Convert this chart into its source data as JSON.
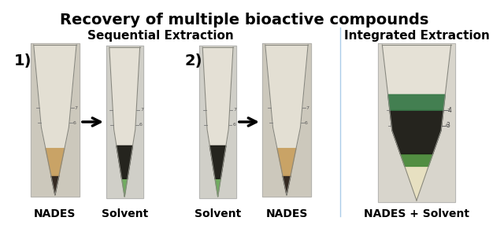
{
  "title": "Recovery of multiple bioactive compounds",
  "subtitle_left": "Sequential Extraction",
  "subtitle_right": "Integrated Extraction",
  "label_1": "1)",
  "label_2": "2)",
  "bg_color": "#ffffff",
  "border_color": "#5b9bd5",
  "title_fontsize": 14,
  "subtitle_fontsize": 11,
  "number_fontsize": 14,
  "tube_label_fontsize": 10,
  "figsize": [
    6.4,
    2.95
  ],
  "dpi": 100,
  "nades_color": "#c8a060",
  "nades_dark_color": "#2a2018",
  "solvent_green_color": "#4a8a3a",
  "solvent_green_light": "#6aaa5a",
  "dark_layer_color": "#1a1a14",
  "cream_color": "#e8e0c0",
  "tube_bg": "#e8e4d8",
  "tube_outline": "#888880",
  "photo_bg_left": "#d0ccc0",
  "photo_bg_right": "#e0ddd5"
}
